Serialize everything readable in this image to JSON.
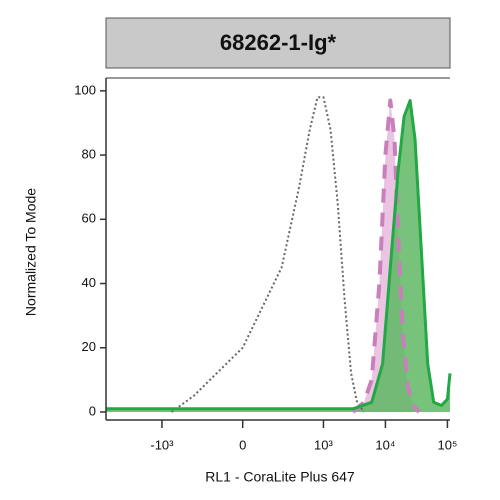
{
  "chart_data": {
    "type": "histogram-overlay",
    "title": "68262-1-Ig*",
    "xlabel": "RL1 - CoraLite Plus 647",
    "ylabel": "Normalized To Mode",
    "xscale": "biexponential",
    "xlim": [
      -8000,
      110000
    ],
    "ylim": [
      -2.5,
      104
    ],
    "xticks": [
      {
        "value": -1000,
        "label": "-10³"
      },
      0,
      {
        "value": 1000,
        "label": "10³"
      },
      {
        "value": 10000,
        "label": "10⁴"
      },
      {
        "value": 100000,
        "label": "10⁵"
      }
    ],
    "yticks": [
      0,
      20,
      40,
      60,
      80,
      100
    ],
    "series": [
      {
        "color": "#666666",
        "style": "dotted",
        "fill": "none",
        "x": [
          -700,
          -300,
          0,
          200,
          400,
          600,
          800,
          1000,
          1300,
          1700,
          2200,
          2800,
          3500,
          4500
        ],
        "values": [
          0,
          5,
          20,
          45,
          70,
          88,
          98,
          98,
          88,
          65,
          35,
          12,
          3,
          0
        ]
      },
      {
        "color": "#c87fba",
        "style": "dashed",
        "fill": "#ebc4e3",
        "x": [
          3000,
          4500,
          6000,
          8000,
          10000,
          12000,
          14000,
          16000,
          19000,
          23000,
          28000,
          35000
        ],
        "values": [
          0,
          3,
          10,
          40,
          80,
          97,
          85,
          55,
          25,
          8,
          2,
          0
        ]
      },
      {
        "color": "#22a844",
        "style": "solid",
        "fill": "#5fb864",
        "x": [
          -8000,
          0,
          3000,
          6000,
          9000,
          12000,
          16000,
          20000,
          25000,
          30000,
          38000,
          48000,
          60000,
          80000,
          100000,
          110000
        ],
        "values": [
          1,
          1,
          1,
          3,
          15,
          45,
          75,
          92,
          97,
          85,
          50,
          15,
          3,
          2,
          4,
          12
        ]
      }
    ]
  }
}
